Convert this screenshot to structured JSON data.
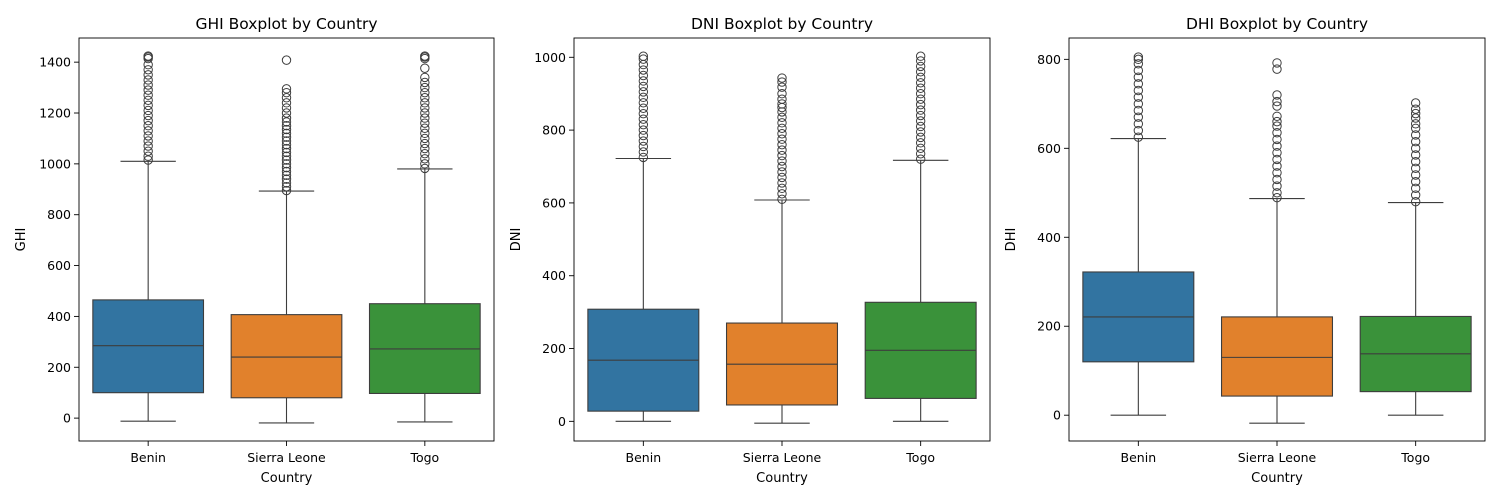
{
  "palette": {
    "Benin": "#3274a1",
    "Sierra Leone": "#e1812c",
    "Togo": "#3a923a"
  },
  "chart_data": [
    {
      "type": "boxplot",
      "title": "GHI Boxplot by Country",
      "xlabel": "Country",
      "ylabel": "GHI",
      "ylim": [
        -90,
        1495
      ],
      "yticks": [
        0,
        200,
        400,
        600,
        800,
        1000,
        1200,
        1400
      ],
      "categories": [
        "Benin",
        "Sierra Leone",
        "Togo"
      ],
      "boxes": [
        {
          "name": "Benin",
          "whisker_low": -12,
          "q1": 100,
          "median": 285,
          "q3": 465,
          "whisker_high": 1010,
          "outliers": [
            1015,
            1030,
            1050,
            1070,
            1090,
            1110,
            1130,
            1150,
            1170,
            1190,
            1210,
            1230,
            1250,
            1270,
            1290,
            1310,
            1330,
            1350,
            1370,
            1390,
            1414,
            1420,
            1424
          ]
        },
        {
          "name": "Sierra Leone",
          "whisker_low": -19,
          "q1": 80,
          "median": 240,
          "q3": 407,
          "whisker_high": 893,
          "outliers": [
            895,
            910,
            925,
            940,
            955,
            970,
            985,
            1000,
            1015,
            1030,
            1045,
            1060,
            1075,
            1090,
            1105,
            1120,
            1135,
            1150,
            1165,
            1180,
            1200,
            1220,
            1240,
            1260,
            1280,
            1295,
            1408
          ]
        },
        {
          "name": "Togo",
          "whisker_low": -15,
          "q1": 97,
          "median": 272,
          "q3": 450,
          "whisker_high": 980,
          "outliers": [
            982,
            1000,
            1020,
            1040,
            1060,
            1080,
            1100,
            1120,
            1140,
            1160,
            1180,
            1200,
            1220,
            1240,
            1260,
            1280,
            1300,
            1320,
            1340,
            1376,
            1414,
            1420,
            1424
          ]
        }
      ]
    },
    {
      "type": "boxplot",
      "title": "DNI Boxplot by Country",
      "xlabel": "Country",
      "ylabel": "DNI",
      "ylim": [
        -54,
        1053
      ],
      "yticks": [
        0,
        200,
        400,
        600,
        800,
        1000
      ],
      "categories": [
        "Benin",
        "Sierra Leone",
        "Togo"
      ],
      "boxes": [
        {
          "name": "Benin",
          "whisker_low": 0,
          "q1": 28,
          "median": 168,
          "q3": 308,
          "whisker_high": 722,
          "outliers": [
            725,
            740,
            755,
            770,
            785,
            800,
            815,
            830,
            845,
            860,
            875,
            890,
            905,
            920,
            935,
            950,
            965,
            980,
            995,
            1003
          ]
        },
        {
          "name": "Sierra Leone",
          "whisker_low": -5,
          "q1": 45,
          "median": 157,
          "q3": 270,
          "whisker_high": 608,
          "outliers": [
            610,
            625,
            640,
            655,
            670,
            685,
            700,
            715,
            730,
            745,
            760,
            775,
            790,
            805,
            820,
            835,
            850,
            862,
            872,
            885,
            900,
            918,
            932,
            943
          ]
        },
        {
          "name": "Togo",
          "whisker_low": 0,
          "q1": 63,
          "median": 195,
          "q3": 327,
          "whisker_high": 717,
          "outliers": [
            720,
            735,
            750,
            765,
            780,
            795,
            810,
            825,
            840,
            855,
            870,
            885,
            900,
            915,
            930,
            945,
            960,
            975,
            990,
            1003
          ]
        }
      ]
    },
    {
      "type": "boxplot",
      "title": "DHI Boxplot by Country",
      "xlabel": "Country",
      "ylabel": "DHI",
      "ylim": [
        -58,
        848
      ],
      "yticks": [
        0,
        200,
        400,
        600,
        800
      ],
      "categories": [
        "Benin",
        "Sierra Leone",
        "Togo"
      ],
      "boxes": [
        {
          "name": "Benin",
          "whisker_low": 0,
          "q1": 120,
          "median": 221,
          "q3": 322,
          "whisker_high": 622,
          "outliers": [
            625,
            640,
            655,
            670,
            685,
            700,
            715,
            730,
            745,
            760,
            775,
            790,
            800,
            805
          ]
        },
        {
          "name": "Sierra Leone",
          "whisker_low": -18,
          "q1": 43,
          "median": 130,
          "q3": 221,
          "whisker_high": 487,
          "outliers": [
            489,
            500,
            515,
            530,
            545,
            560,
            575,
            590,
            605,
            620,
            635,
            650,
            660,
            672,
            695,
            705,
            720,
            778,
            792
          ]
        },
        {
          "name": "Togo",
          "whisker_low": 0,
          "q1": 53,
          "median": 138,
          "q3": 222,
          "whisker_high": 478,
          "outliers": [
            480,
            495,
            510,
            525,
            540,
            555,
            570,
            585,
            600,
            615,
            630,
            645,
            655,
            668,
            678,
            688,
            702
          ]
        }
      ]
    }
  ]
}
